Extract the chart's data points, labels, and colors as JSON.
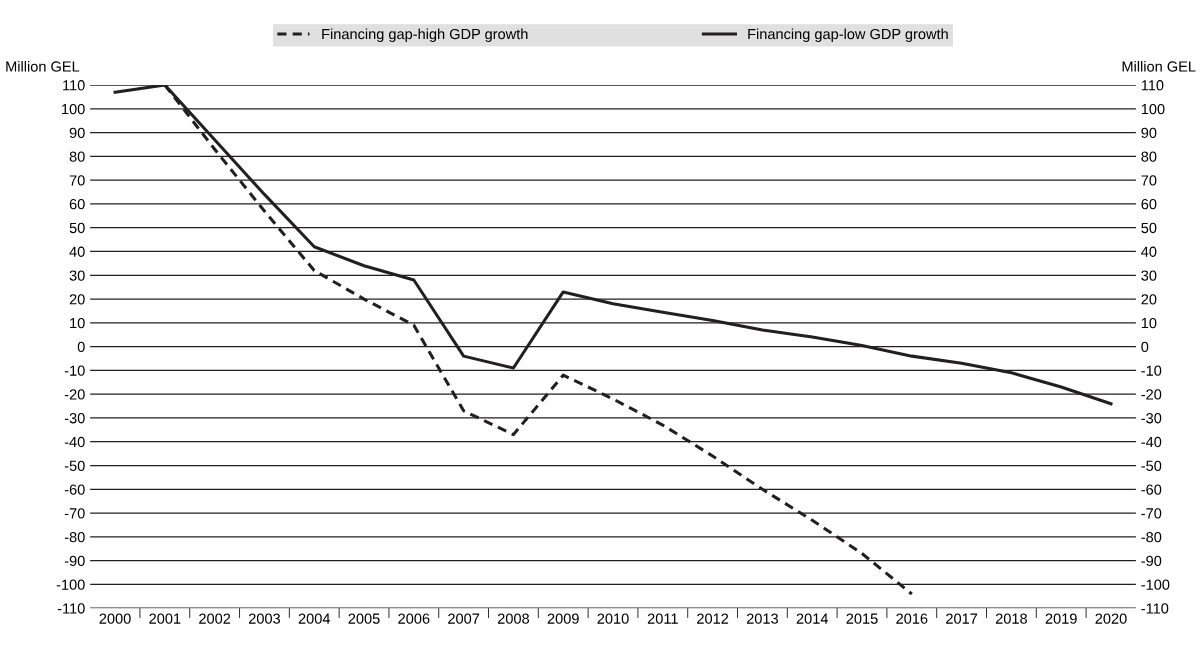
{
  "chart_data": {
    "type": "line",
    "categories": [
      "2000",
      "2001",
      "2002",
      "2003",
      "2004",
      "2005",
      "2006",
      "2007",
      "2008",
      "2009",
      "2010",
      "2011",
      "2012",
      "2013",
      "2014",
      "2015",
      "2016",
      "2017",
      "2018",
      "2019",
      "2020"
    ],
    "series": [
      {
        "name": "Financing gap-high GDP growth",
        "color": "#231f20",
        "line_style": "dashed",
        "values": [
          null,
          110,
          83,
          57,
          32,
          20,
          9,
          -27,
          -37,
          -12,
          -22,
          -33,
          -46,
          -60,
          -73,
          -87,
          -104,
          null,
          null,
          null,
          null
        ]
      },
      {
        "name": "Financing gap-low GDP growth",
        "color": "#231f20",
        "line_style": "solid",
        "values": [
          107,
          110,
          87,
          64,
          42,
          34,
          28,
          -4,
          -9,
          23,
          18,
          14.5,
          11,
          7,
          4,
          0.5,
          -4,
          -7,
          -11,
          -17,
          -24
        ]
      }
    ],
    "ylabel": "Million GEL",
    "y2label": "Million GEL",
    "ylim": [
      -110,
      110
    ],
    "yticks": [
      -110,
      -100,
      -90,
      -80,
      -70,
      -60,
      -50,
      -40,
      -30,
      -20,
      -10,
      0,
      10,
      20,
      30,
      40,
      50,
      60,
      70,
      80,
      90,
      100,
      110
    ],
    "y2lim": [
      -110,
      110
    ],
    "y2ticks": [
      -110,
      -100,
      -90,
      -80,
      -70,
      -60,
      -50,
      -40,
      -30,
      -20,
      -10,
      0,
      10,
      20,
      30,
      40,
      50,
      60,
      70,
      80,
      90,
      100,
      110
    ],
    "grid": "y",
    "legend": "top",
    "marker": "none"
  }
}
